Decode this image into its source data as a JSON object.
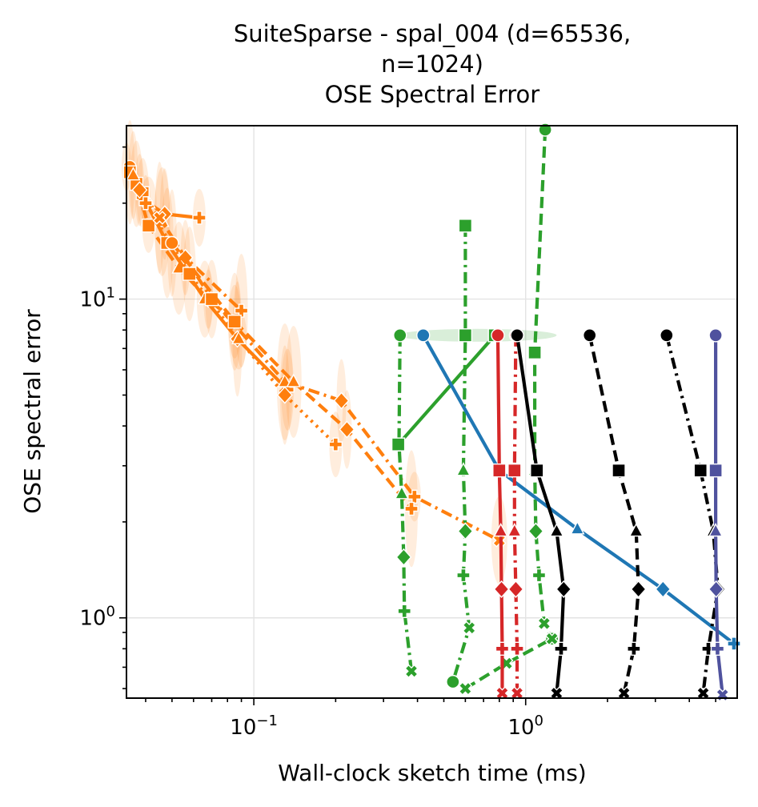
{
  "chart_data": {
    "type": "line",
    "title_lines": [
      "SuiteSparse - spal_004 (d=65536,",
      "n=1024)",
      "OSE Spectral Error"
    ],
    "xlabel": "Wall-clock sketch time (ms)",
    "ylabel": "OSE spectral error",
    "x_scale": "log",
    "y_scale": "log",
    "xlim": [
      0.034,
      6.0
    ],
    "ylim": [
      0.56,
      35.0
    ],
    "x_ticks": [
      {
        "value": 0.1,
        "base": "10",
        "exp": "−1"
      },
      {
        "value": 1.0,
        "base": "10",
        "exp": "0"
      }
    ],
    "y_ticks": [
      {
        "value": 1.0,
        "base": "10",
        "exp": "0"
      },
      {
        "value": 10.0,
        "base": "10",
        "exp": "1"
      }
    ],
    "grid": true,
    "series": [
      {
        "color": "#ff7f0e",
        "dash": "solid",
        "marker": "o",
        "x": [
          0.034,
          0.037,
          0.041,
          0.047,
          0.063
        ],
        "y": [
          26.0,
          23.0,
          20.0,
          18.5,
          18.0
        ]
      },
      {
        "color": "#ff7f0e",
        "dash": "dashdot",
        "marker": "s",
        "x": [
          0.035,
          0.039,
          0.046,
          0.056,
          0.09
        ],
        "y": [
          25.0,
          21.5,
          17.5,
          13.5,
          9.2
        ]
      },
      {
        "color": "#ff7f0e",
        "dash": "dashed",
        "marker": "^",
        "x": [
          0.036,
          0.041,
          0.053,
          0.068,
          0.085
        ],
        "y": [
          24.5,
          17.0,
          12.5,
          10.0,
          8.5
        ]
      },
      {
        "color": "#ff7f0e",
        "dash": "solid",
        "marker": "D",
        "x": [
          0.038,
          0.048,
          0.066,
          0.087,
          0.133
        ],
        "y": [
          22.0,
          15.0,
          10.0,
          7.5,
          5.2
        ]
      },
      {
        "color": "#ff7f0e",
        "dash": "dotted",
        "marker": "P",
        "x": [
          0.04,
          0.058,
          0.088,
          0.13,
          0.2
        ],
        "y": [
          20.0,
          12.0,
          7.5,
          5.0,
          3.5
        ]
      },
      {
        "color": "#ff7f0e",
        "dash": "dashdot",
        "marker": "X",
        "x": [
          0.045,
          0.07,
          0.13,
          0.21,
          0.39,
          0.8
        ],
        "y": [
          18.0,
          10.0,
          5.5,
          4.8,
          2.4,
          1.75
        ]
      },
      {
        "color": "#ff7f0e",
        "dash": "dashed",
        "marker": "o",
        "x": [
          0.05,
          0.085,
          0.14,
          0.22,
          0.38
        ],
        "y": [
          15.0,
          8.5,
          5.5,
          3.9,
          2.2
        ]
      },
      {
        "color": "#2ca02c",
        "dash": "dashdot",
        "marker": "o",
        "x": [
          0.345,
          0.342,
          0.35,
          0.356,
          0.358,
          0.38
        ],
        "y": [
          7.7,
          3.5,
          2.45,
          1.55,
          1.05,
          0.68
        ]
      },
      {
        "color": "#2ca02c",
        "dash": "solid",
        "marker": "s",
        "x": [
          0.34,
          0.77
        ],
        "y": [
          3.5,
          7.7
        ]
      },
      {
        "color": "#2ca02c",
        "dash": "dashdot",
        "marker": "s",
        "x": [
          0.6,
          0.6,
          0.59,
          0.6,
          0.59,
          0.62,
          0.54
        ],
        "y": [
          17.0,
          7.7,
          2.9,
          1.87,
          1.36,
          0.93,
          0.63
        ]
      },
      {
        "color": "#2ca02c",
        "dash": "dashed",
        "marker": "o",
        "x": [
          1.18,
          1.08,
          1.08,
          1.09,
          1.12,
          1.17,
          1.25
        ],
        "y": [
          34.0,
          6.8,
          2.9,
          1.87,
          1.36,
          0.96,
          0.86
        ]
      },
      {
        "color": "#2ca02c",
        "dash": "dashed",
        "marker": "X",
        "x": [
          0.6,
          0.85,
          1.25
        ],
        "y": [
          0.6,
          0.72,
          0.86
        ]
      },
      {
        "color": "#1f77b4",
        "dash": "solid",
        "marker": "o",
        "x": [
          0.42,
          0.8,
          1.55,
          3.2,
          6.0
        ],
        "y": [
          7.7,
          2.9,
          1.9,
          1.23,
          0.83
        ]
      },
      {
        "color": "#d62728",
        "dash": "solid",
        "marker": "o",
        "x": [
          0.79,
          0.8,
          0.81,
          0.815,
          0.82,
          0.82
        ],
        "y": [
          7.7,
          2.9,
          1.87,
          1.23,
          0.8,
          0.58
        ]
      },
      {
        "color": "#d62728",
        "dash": "dashdot",
        "marker": "o",
        "x": [
          0.92,
          0.91,
          0.91,
          0.92,
          0.93,
          0.93
        ],
        "y": [
          7.7,
          2.9,
          1.87,
          1.23,
          0.8,
          0.58
        ]
      },
      {
        "color": "#000000",
        "dash": "solid",
        "marker": "o",
        "x": [
          0.93,
          1.1,
          1.3,
          1.38,
          1.35,
          1.3
        ],
        "y": [
          7.7,
          2.9,
          1.87,
          1.23,
          0.8,
          0.58
        ]
      },
      {
        "color": "#000000",
        "dash": "dashed",
        "marker": "o",
        "x": [
          1.72,
          2.2,
          2.55,
          2.6,
          2.5,
          2.3
        ],
        "y": [
          7.7,
          2.9,
          1.87,
          1.23,
          0.8,
          0.58
        ]
      },
      {
        "color": "#000000",
        "dash": "dashdot",
        "marker": "o",
        "x": [
          3.3,
          4.4,
          4.9,
          5.1,
          4.7,
          4.5
        ],
        "y": [
          7.7,
          2.9,
          1.87,
          1.23,
          0.8,
          0.58
        ]
      },
      {
        "color": "#4f529e",
        "dash": "solid",
        "marker": "o",
        "x": [
          5.0,
          5.0,
          5.0,
          5.02,
          5.08,
          5.3
        ],
        "y": [
          7.7,
          2.9,
          1.87,
          1.23,
          0.8,
          0.56
        ]
      }
    ]
  }
}
